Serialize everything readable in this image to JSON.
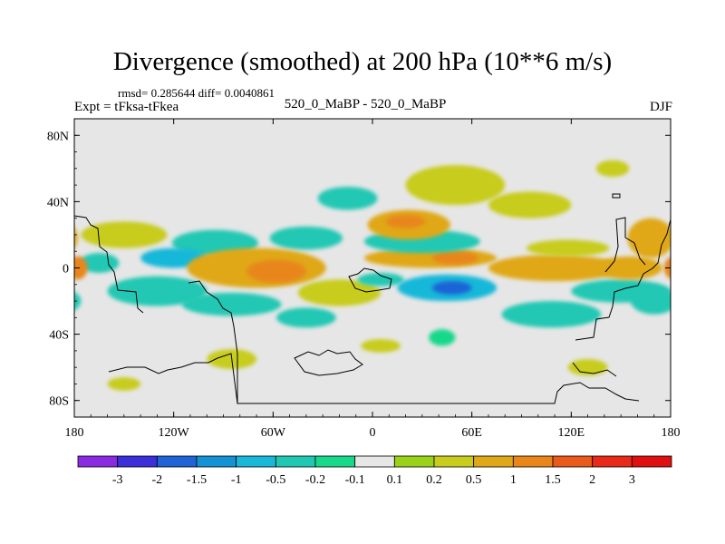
{
  "header": {
    "title": "Divergence (smoothed) at 200 hPa (10**6 m/s)",
    "stats": "rmsd= 0.285644 diff= 0.0040861",
    "expt": "Expt = tFksa-tFkea",
    "subtitle": "520_0_MaBP - 520_0_MaBP",
    "season": "DJF"
  },
  "chart_data": {
    "type": "heatmap",
    "title": "Divergence (smoothed) at 200 hPa (10**6 m/s)",
    "xlabel": "",
    "ylabel": "",
    "xlim": [
      -180,
      180
    ],
    "ylim": [
      -90,
      90
    ],
    "x_ticks": [
      {
        "value": -180,
        "label": "180"
      },
      {
        "value": -120,
        "label": "120W"
      },
      {
        "value": -60,
        "label": "60W"
      },
      {
        "value": 0,
        "label": "0"
      },
      {
        "value": 60,
        "label": "60E"
      },
      {
        "value": 120,
        "label": "120E"
      },
      {
        "value": 180,
        "label": "180"
      }
    ],
    "y_ticks": [
      {
        "value": 80,
        "label": "80N"
      },
      {
        "value": 40,
        "label": "40N"
      },
      {
        "value": 0,
        "label": "0"
      },
      {
        "value": -40,
        "label": "40S"
      },
      {
        "value": -80,
        "label": "80S"
      }
    ],
    "colorbar": {
      "levels": [
        "-3",
        "-2",
        "-1.5",
        "-1",
        "-0.5",
        "-0.2",
        "-0.1",
        "0.1",
        "0.2",
        "0.5",
        "1",
        "1.5",
        "2",
        "3"
      ],
      "colors": [
        "#8a2be2",
        "#3a2fd8",
        "#1f63d6",
        "#1592d4",
        "#19b8d9",
        "#20c8b4",
        "#18d88a",
        "#e6e6e6",
        "#9ad21a",
        "#c8cc1c",
        "#e0a818",
        "#e8861a",
        "#ea5a1a",
        "#e82a18",
        "#e01010"
      ]
    },
    "anomalies": [
      {
        "lon": -95,
        "lat": 15,
        "rx": 26,
        "ry": 8,
        "value": -0.4
      },
      {
        "lon": -40,
        "lat": 18,
        "rx": 22,
        "ry": 7,
        "value": -0.3
      },
      {
        "lon": -150,
        "lat": 20,
        "rx": 26,
        "ry": 8,
        "value": 0.35
      },
      {
        "lon": -120,
        "lat": 6,
        "rx": 20,
        "ry": 6,
        "value": -0.6
      },
      {
        "lon": -165,
        "lat": 3,
        "rx": 12,
        "ry": 6,
        "value": -0.4
      },
      {
        "lon": -178,
        "lat": 0,
        "rx": 6,
        "ry": 7,
        "value": 1.0
      },
      {
        "lon": -70,
        "lat": 0,
        "rx": 42,
        "ry": 12,
        "value": 0.9
      },
      {
        "lon": -58,
        "lat": -2,
        "rx": 18,
        "ry": 7,
        "value": 1.2
      },
      {
        "lon": -130,
        "lat": -14,
        "rx": 30,
        "ry": 9,
        "value": -0.35
      },
      {
        "lon": -85,
        "lat": -22,
        "rx": 30,
        "ry": 7,
        "value": -0.3
      },
      {
        "lon": -20,
        "lat": -15,
        "rx": 25,
        "ry": 8,
        "value": 0.3
      },
      {
        "lon": 5,
        "lat": -7,
        "rx": 14,
        "ry": 4,
        "value": -0.4
      },
      {
        "lon": 45,
        "lat": -12,
        "rx": 30,
        "ry": 8,
        "value": -1.0
      },
      {
        "lon": 48,
        "lat": -12,
        "rx": 12,
        "ry": 4,
        "value": -1.6
      },
      {
        "lon": 35,
        "lat": 6,
        "rx": 40,
        "ry": 6,
        "value": 0.6
      },
      {
        "lon": 50,
        "lat": 6,
        "rx": 14,
        "ry": 4,
        "value": 1.1
      },
      {
        "lon": 30,
        "lat": 16,
        "rx": 35,
        "ry": 7,
        "value": -0.5
      },
      {
        "lon": 22,
        "lat": 26,
        "rx": 25,
        "ry": 9,
        "value": 0.7
      },
      {
        "lon": 20,
        "lat": 28,
        "rx": 12,
        "ry": 4,
        "value": 1.0
      },
      {
        "lon": 50,
        "lat": 50,
        "rx": 30,
        "ry": 12,
        "value": 0.3
      },
      {
        "lon": 95,
        "lat": 38,
        "rx": 25,
        "ry": 8,
        "value": 0.25
      },
      {
        "lon": -15,
        "lat": 42,
        "rx": 18,
        "ry": 7,
        "value": -0.3
      },
      {
        "lon": 110,
        "lat": 0,
        "rx": 40,
        "ry": 8,
        "value": 0.5
      },
      {
        "lon": 118,
        "lat": 12,
        "rx": 25,
        "ry": 5,
        "value": 0.35
      },
      {
        "lon": 108,
        "lat": -28,
        "rx": 30,
        "ry": 8,
        "value": -0.3
      },
      {
        "lon": 150,
        "lat": -14,
        "rx": 30,
        "ry": 7,
        "value": -0.4
      },
      {
        "lon": 155,
        "lat": 0,
        "rx": 20,
        "ry": 7,
        "value": 0.9
      },
      {
        "lon": 168,
        "lat": 18,
        "rx": 14,
        "ry": 12,
        "value": 0.5
      },
      {
        "lon": 170,
        "lat": -20,
        "rx": 14,
        "ry": 8,
        "value": -0.3
      },
      {
        "lon": 145,
        "lat": 60,
        "rx": 10,
        "ry": 5,
        "value": 0.2
      },
      {
        "lon": -150,
        "lat": -70,
        "rx": 10,
        "ry": 4,
        "value": 0.2
      },
      {
        "lon": 130,
        "lat": -60,
        "rx": 12,
        "ry": 5,
        "value": 0.2
      },
      {
        "lon": 42,
        "lat": -42,
        "rx": 8,
        "ry": 5,
        "value": -0.2
      },
      {
        "lon": 5,
        "lat": -47,
        "rx": 12,
        "ry": 4,
        "value": 0.2
      },
      {
        "lon": -85,
        "lat": -55,
        "rx": 15,
        "ry": 6,
        "value": 0.25
      },
      {
        "lon": -40,
        "lat": -30,
        "rx": 18,
        "ry": 6,
        "value": -0.25
      }
    ]
  }
}
